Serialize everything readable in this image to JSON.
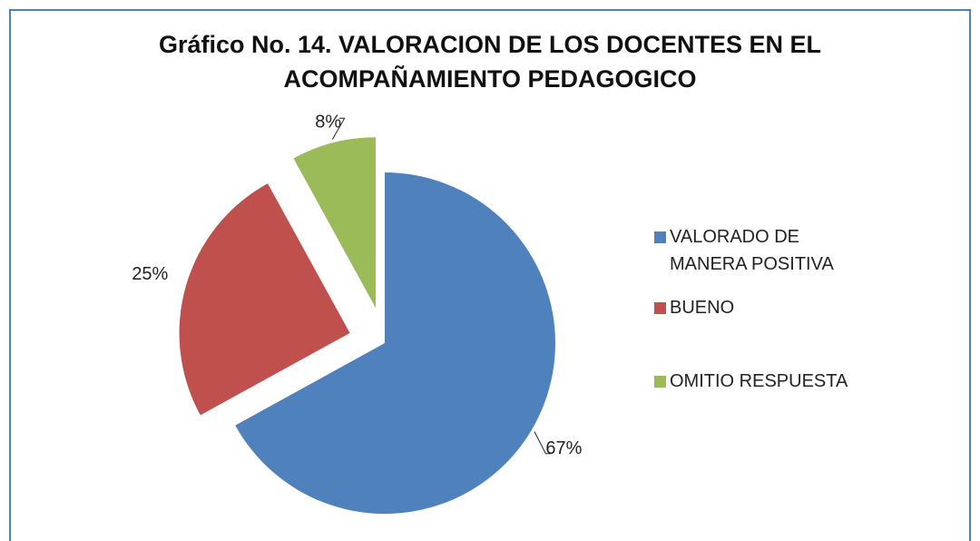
{
  "chart_data": {
    "type": "pie",
    "title": "Gráfico No. 14. VALORACION DE LOS DOCENTES EN EL ACOMPAÑAMIENTO PEDAGOGICO",
    "categories": [
      "VALORADO DE MANERA POSITIVA",
      "BUENO",
      "OMITIO RESPUESTA"
    ],
    "values": [
      67,
      25,
      8
    ],
    "value_labels": [
      "67%",
      "25%",
      "8%"
    ],
    "colors": [
      "#4f81bd",
      "#c0504d",
      "#9bbb59"
    ],
    "legend": "right"
  }
}
